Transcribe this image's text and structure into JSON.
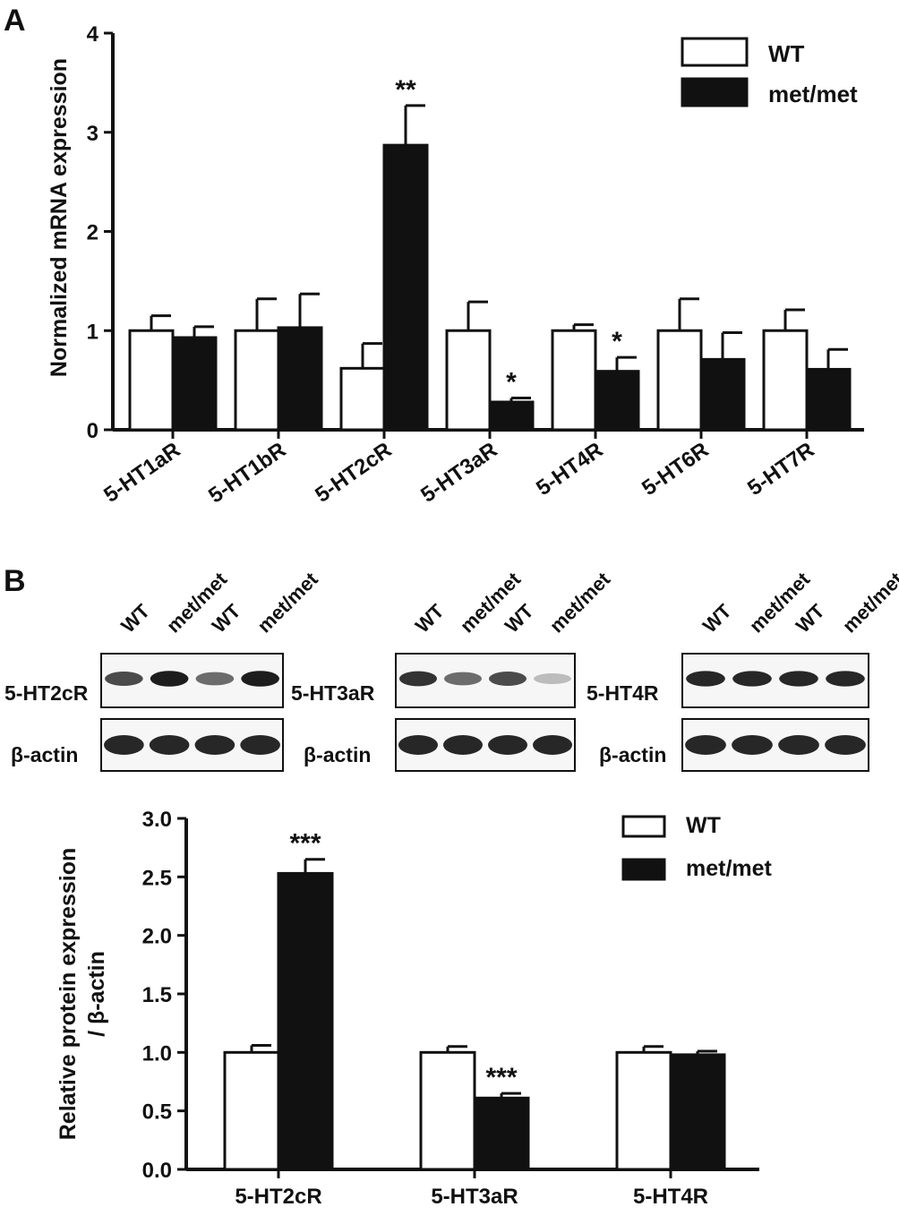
{
  "panel_labels": {
    "a": "A",
    "b": "B"
  },
  "chart_data": [
    {
      "type": "bar",
      "ylabel": "Normalized mRNA expression",
      "ylim": [
        0,
        4
      ],
      "yticks": [
        "0",
        "1",
        "2",
        "3",
        "4"
      ],
      "categories": [
        "5-HT1aR",
        "5-HT1bR",
        "5-HT2cR",
        "5-HT3aR",
        "5-HT4R",
        "5-HT6R",
        "5-HT7R"
      ],
      "series": [
        {
          "name": "WT",
          "fill": "#ffffff",
          "values": [
            1.0,
            1.0,
            0.62,
            1.0,
            1.0,
            1.0,
            1.0
          ],
          "errors": [
            0.15,
            0.32,
            0.25,
            0.29,
            0.06,
            0.32,
            0.21
          ]
        },
        {
          "name": "met/met",
          "fill": "#111111",
          "values": [
            0.93,
            1.03,
            2.87,
            0.28,
            0.59,
            0.71,
            0.61
          ],
          "errors": [
            0.11,
            0.34,
            0.4,
            0.04,
            0.14,
            0.27,
            0.2
          ]
        }
      ],
      "annotations": [
        {
          "category": "5-HT2cR",
          "series": 1,
          "text": "**"
        },
        {
          "category": "5-HT3aR",
          "series": 1,
          "text": "*"
        },
        {
          "category": "5-HT4R",
          "series": 1,
          "text": "*"
        }
      ],
      "legend": {
        "position": "top-right",
        "items": [
          "WT",
          "met/met"
        ]
      }
    },
    {
      "type": "bar",
      "ylabel": "Relative protein expression / β-actin",
      "ylabel_lines": [
        "Relative protein expression",
        "/ β-actin"
      ],
      "ylim": [
        0,
        3.0
      ],
      "yticks": [
        "0.0",
        "0.5",
        "1.0",
        "1.5",
        "2.0",
        "2.5",
        "3.0"
      ],
      "categories": [
        "5-HT2cR",
        "5-HT3aR",
        "5-HT4R"
      ],
      "series": [
        {
          "name": "WT",
          "fill": "#ffffff",
          "values": [
            1.0,
            1.0,
            1.0
          ],
          "errors": [
            0.06,
            0.05,
            0.05
          ]
        },
        {
          "name": "met/met",
          "fill": "#111111",
          "values": [
            2.53,
            0.61,
            0.98
          ],
          "errors": [
            0.12,
            0.04,
            0.03
          ]
        }
      ],
      "annotations": [
        {
          "category": "5-HT2cR",
          "series": 1,
          "text": "***"
        },
        {
          "category": "5-HT3aR",
          "series": 1,
          "text": "***"
        }
      ],
      "legend": {
        "position": "top-right",
        "items": [
          "WT",
          "met/met"
        ]
      }
    }
  ],
  "blots": [
    {
      "lane_labels": [
        "WT",
        "met/met",
        "WT",
        "met/met"
      ],
      "target": "5-HT2cR",
      "loading": "β-actin",
      "target_intensity": [
        0.75,
        0.95,
        0.6,
        0.95
      ]
    },
    {
      "lane_labels": [
        "WT",
        "met/met",
        "WT",
        "met/met"
      ],
      "target": "5-HT3aR",
      "loading": "β-actin",
      "target_intensity": [
        0.85,
        0.6,
        0.75,
        0.25
      ]
    },
    {
      "lane_labels": [
        "WT",
        "met/met",
        "WT",
        "met/met"
      ],
      "target": "5-HT4R",
      "loading": "β-actin",
      "target_intensity": [
        0.9,
        0.9,
        0.9,
        0.9
      ]
    }
  ]
}
